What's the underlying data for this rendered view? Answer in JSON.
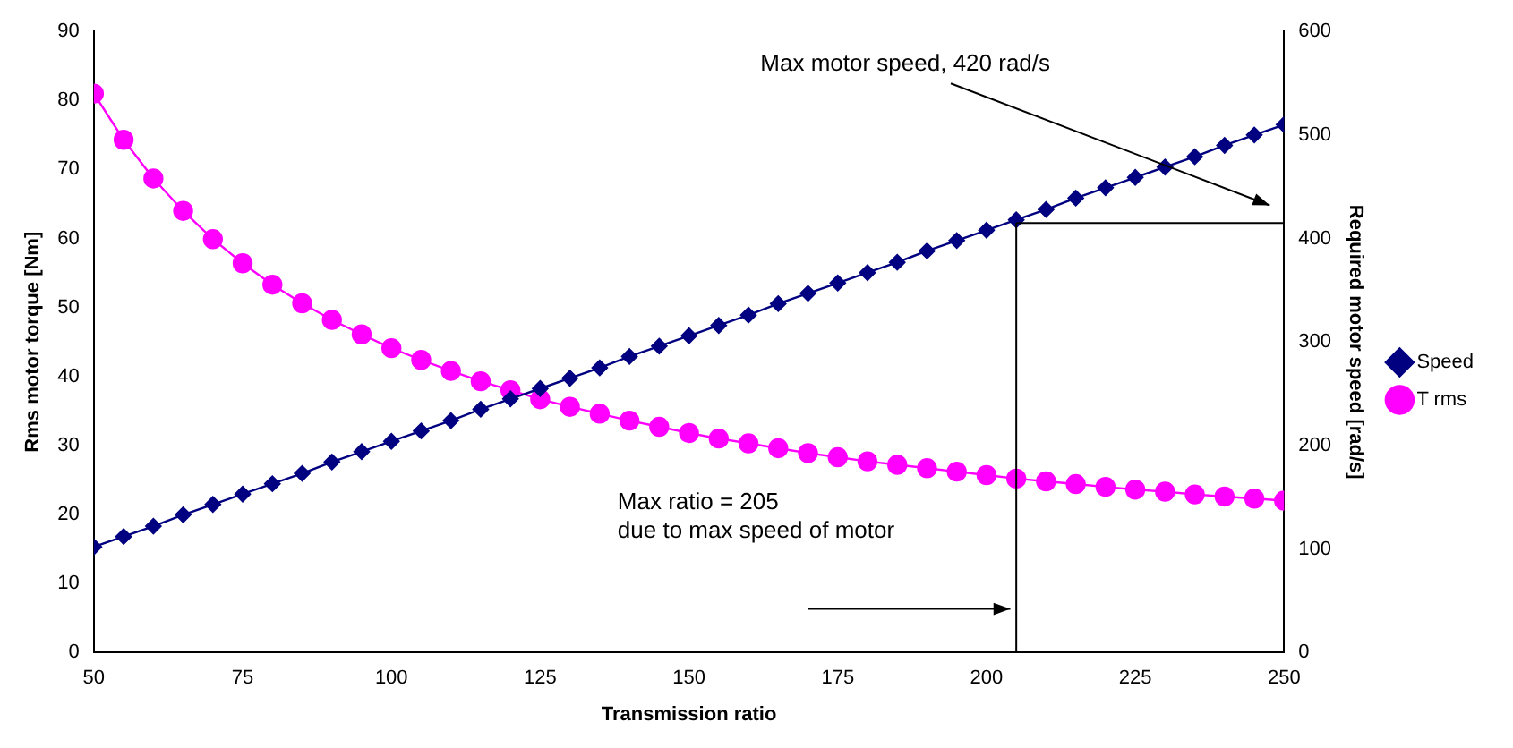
{
  "chart_data": {
    "type": "line",
    "xlabel": "Transmission ratio",
    "ylabel": "Rms motor torque [Nm]",
    "y2label": "Required motor speed [rad/s]",
    "x": [
      50,
      55,
      60,
      65,
      70,
      75,
      80,
      85,
      90,
      95,
      100,
      105,
      110,
      115,
      120,
      125,
      130,
      135,
      140,
      145,
      150,
      155,
      160,
      165,
      170,
      175,
      180,
      185,
      190,
      195,
      200,
      205,
      210,
      215,
      220,
      225,
      230,
      235,
      240,
      245,
      250
    ],
    "series": [
      {
        "name": "T rms",
        "color": "#ff00ff",
        "marker": "circle",
        "values": [
          81.0,
          74.3,
          68.7,
          64.0,
          59.9,
          56.4,
          53.3,
          50.6,
          48.2,
          46.1,
          44.1,
          42.4,
          40.8,
          39.3,
          38.0,
          36.7,
          35.6,
          34.6,
          33.6,
          32.7,
          31.8,
          31.0,
          30.3,
          29.6,
          28.9,
          28.3,
          27.7,
          27.2,
          26.7,
          26.2,
          25.7,
          25.2,
          24.8,
          24.4,
          24.0,
          23.6,
          23.3,
          22.9,
          22.6,
          22.3,
          22.0
        ]
      },
      {
        "name": "Speed",
        "color": "#000080",
        "marker": "diamond",
        "axis": "y2",
        "values": [
          102,
          112,
          122,
          133,
          143,
          153,
          163,
          173,
          184,
          194,
          204,
          214,
          224,
          235,
          245,
          255,
          265,
          275,
          286,
          296,
          306,
          316,
          326,
          337,
          347,
          357,
          367,
          377,
          388,
          398,
          408,
          418,
          428,
          439,
          449,
          459,
          469,
          479,
          490,
          500,
          510
        ]
      }
    ],
    "xlim": [
      50,
      250
    ],
    "xticks": [
      50,
      75,
      100,
      125,
      150,
      175,
      200,
      225,
      250
    ],
    "ylim": [
      0,
      90
    ],
    "yticks": [
      0,
      10,
      20,
      30,
      40,
      50,
      60,
      70,
      80,
      90
    ],
    "y2lim": [
      0,
      600
    ],
    "y2ticks": [
      0,
      100,
      200,
      300,
      400,
      500,
      600
    ],
    "ref_lines": [
      {
        "axis": "x",
        "value": 205,
        "color": "#000000"
      },
      {
        "axis": "y2",
        "value": 415,
        "color": "#000000"
      }
    ],
    "annotations": [
      "Max motor speed, 420 rad/s",
      "Max ratio = 205\ndue to max speed of motor"
    ],
    "grid": false,
    "legend": "right",
    "line_style": "solid"
  }
}
